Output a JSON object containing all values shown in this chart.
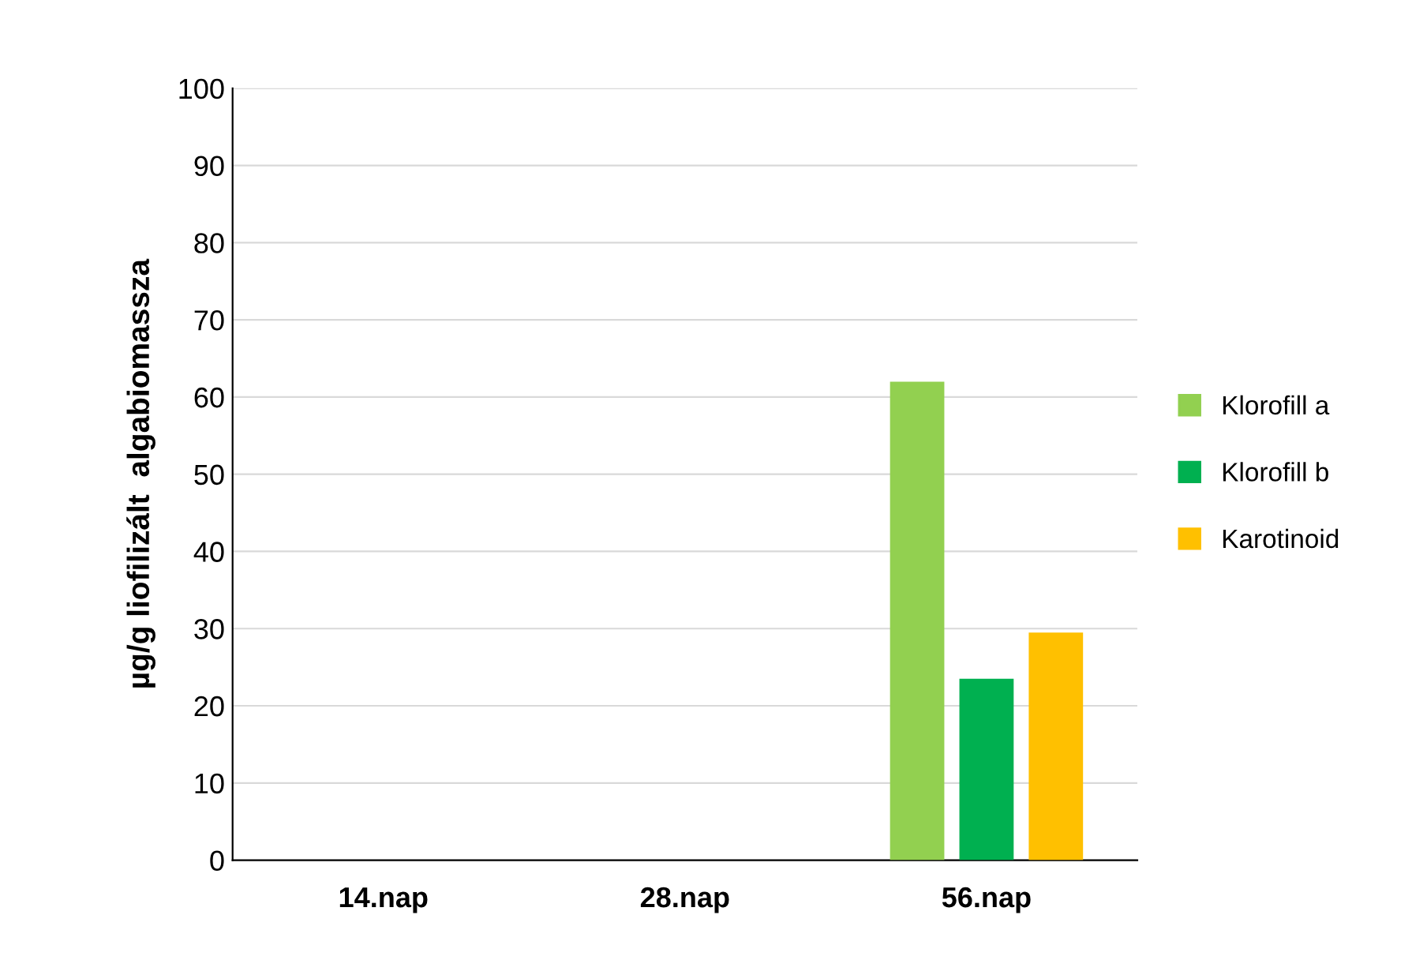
{
  "chart_data": {
    "type": "bar",
    "ylabel": "µg/g liofilizált  algabiomassza",
    "categories": [
      "14.nap",
      "28.nap",
      "56.nap"
    ],
    "series": [
      {
        "name": "Klorofill a",
        "color": "#92d050",
        "values": [
          null,
          null,
          62
        ]
      },
      {
        "name": "Klorofill b",
        "color": "#00b050",
        "values": [
          null,
          null,
          23.5
        ]
      },
      {
        "name": "Karotinoid",
        "color": "#ffc000",
        "values": [
          null,
          null,
          29.5
        ]
      }
    ],
    "ylim": [
      0,
      100
    ],
    "yticks": [
      0,
      10,
      20,
      30,
      40,
      50,
      60,
      70,
      80,
      90,
      100
    ],
    "grid": "y",
    "legend": "right"
  }
}
